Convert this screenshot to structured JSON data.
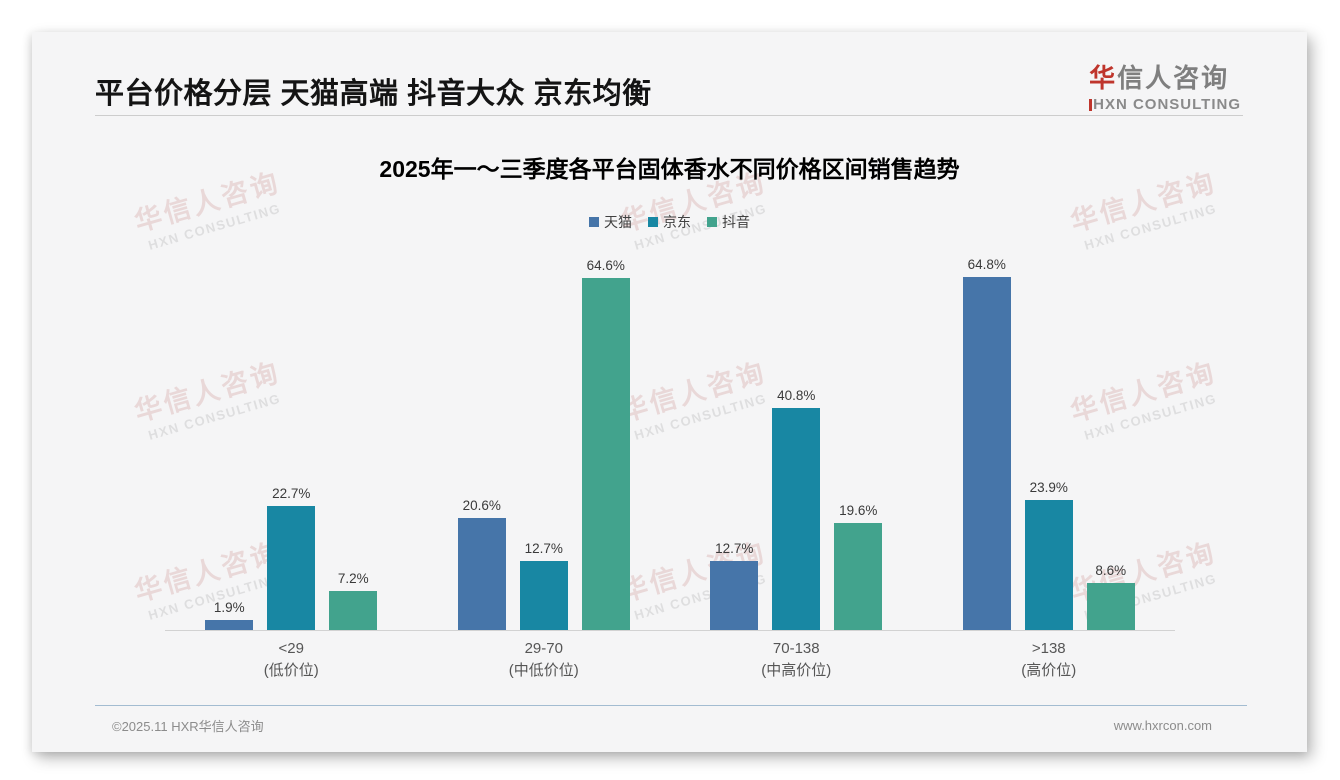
{
  "page": {
    "title": "平台价格分层 天猫高端 抖音大众 京东均衡",
    "footer_left": "©2025.11 HXR华信人咨询",
    "footer_right": "www.hxrcon.com"
  },
  "logo": {
    "zh_first": "华",
    "zh_rest": "信人咨询",
    "en": "HXN CONSULTING",
    "accent_color": "#bf352c"
  },
  "watermark": {
    "zh": "华信人咨询",
    "en": "HXN CONSULTING"
  },
  "chart_data": {
    "type": "bar",
    "title": "2025年一～三季度各平台固体香水不同价格区间销售趋势",
    "categories": [
      "<29",
      "29-70",
      "70-138",
      ">138"
    ],
    "category_sublabels": [
      "(低价位)",
      "(中低价位)",
      "(中高价位)",
      "(高价位)"
    ],
    "series": [
      {
        "name": "天猫",
        "color": "#4675a9",
        "values": [
          1.9,
          20.6,
          12.7,
          64.8
        ]
      },
      {
        "name": "京东",
        "color": "#1887a3",
        "values": [
          22.7,
          12.7,
          40.8,
          23.9
        ]
      },
      {
        "name": "抖音",
        "color": "#42a38d",
        "values": [
          7.2,
          64.6,
          19.6,
          8.6
        ]
      }
    ],
    "value_suffix": "%",
    "ylim": [
      0,
      70
    ],
    "ylabel": "",
    "xlabel": "",
    "grid": false,
    "legend_position": "top"
  }
}
